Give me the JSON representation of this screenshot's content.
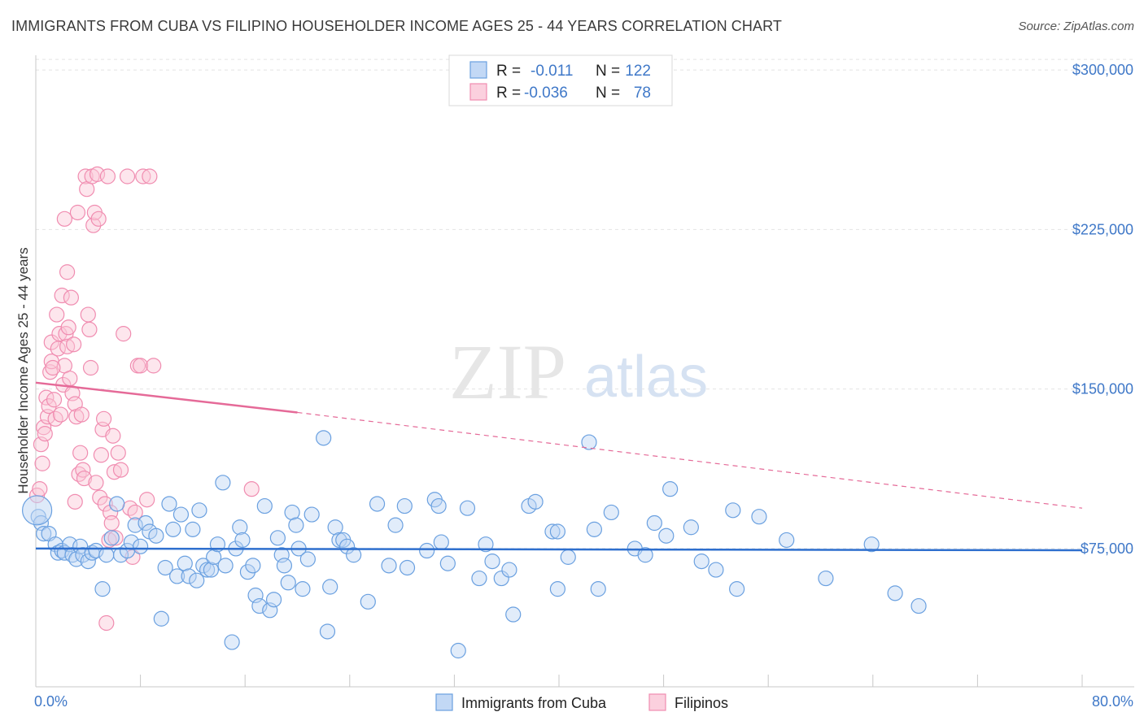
{
  "title": "IMMIGRANTS FROM CUBA VS FILIPINO HOUSEHOLDER INCOME AGES 25 - 44 YEARS CORRELATION CHART",
  "source": "Source: ZipAtlas.com",
  "watermark": {
    "zip": "ZIP",
    "atlas": "atlas"
  },
  "colors": {
    "cuba": "#6aa0e0",
    "cuba_line": "#2e6fce",
    "filipino": "#f08cb0",
    "filipino_line": "#e56a98",
    "tick": "#3f78c8"
  },
  "chart_data": {
    "type": "scatter",
    "xlabel": "",
    "ylabel": "Householder Income Ages 25 - 44 years",
    "xlim": [
      0,
      80
    ],
    "ylim": [
      10000,
      310000
    ],
    "y_ticks": [
      75000,
      150000,
      225000,
      300000
    ],
    "y_tick_labels": [
      "$75,000",
      "$150,000",
      "$225,000",
      "$300,000"
    ],
    "x_tick_labels": {
      "left": "0.0%",
      "right": "80.0%"
    },
    "legend_box": [
      {
        "r_label": "R =",
        "r": "-0.011",
        "n_label": "N =",
        "n": "122"
      },
      {
        "r_label": "R =",
        "r": "-0.036",
        "n_label": "N =",
        "n": "78"
      }
    ],
    "series": [
      {
        "name": "Immigrants from Cuba",
        "trend": {
          "x": [
            0,
            80
          ],
          "y": [
            75000,
            74200
          ]
        },
        "points": [
          [
            0.2,
            90000
          ],
          [
            0.4,
            87000
          ],
          [
            0.6,
            82000
          ],
          [
            1.0,
            82000
          ],
          [
            1.5,
            77000
          ],
          [
            1.7,
            73000
          ],
          [
            2.0,
            74000
          ],
          [
            2.2,
            73000
          ],
          [
            2.6,
            77000
          ],
          [
            2.8,
            72000
          ],
          [
            3.1,
            70000
          ],
          [
            3.4,
            76000
          ],
          [
            3.6,
            72000
          ],
          [
            4.0,
            69000
          ],
          [
            4.3,
            73000
          ],
          [
            4.6,
            74000
          ],
          [
            5.1,
            56000
          ],
          [
            5.4,
            72000
          ],
          [
            5.8,
            80000
          ],
          [
            6.2,
            96000
          ],
          [
            6.5,
            72000
          ],
          [
            7.0,
            74000
          ],
          [
            7.3,
            78000
          ],
          [
            7.6,
            86000
          ],
          [
            8.0,
            76000
          ],
          [
            8.4,
            87000
          ],
          [
            8.7,
            83000
          ],
          [
            9.2,
            81000
          ],
          [
            9.6,
            42000
          ],
          [
            9.9,
            66000
          ],
          [
            10.2,
            96000
          ],
          [
            10.5,
            84000
          ],
          [
            10.8,
            62000
          ],
          [
            11.1,
            91000
          ],
          [
            11.4,
            68000
          ],
          [
            11.7,
            62000
          ],
          [
            12.0,
            84000
          ],
          [
            12.3,
            60000
          ],
          [
            12.5,
            93000
          ],
          [
            12.8,
            67000
          ],
          [
            13.1,
            65000
          ],
          [
            13.4,
            65000
          ],
          [
            13.6,
            71000
          ],
          [
            13.9,
            77000
          ],
          [
            14.3,
            106000
          ],
          [
            14.5,
            67000
          ],
          [
            15.0,
            31000
          ],
          [
            15.3,
            75000
          ],
          [
            15.6,
            85000
          ],
          [
            15.8,
            79000
          ],
          [
            16.2,
            64000
          ],
          [
            16.6,
            67000
          ],
          [
            16.8,
            53000
          ],
          [
            17.1,
            48000
          ],
          [
            17.5,
            95000
          ],
          [
            17.9,
            46000
          ],
          [
            18.2,
            51000
          ],
          [
            18.5,
            80000
          ],
          [
            18.8,
            72000
          ],
          [
            19.0,
            67000
          ],
          [
            19.3,
            59000
          ],
          [
            19.6,
            92000
          ],
          [
            19.9,
            86000
          ],
          [
            20.1,
            75000
          ],
          [
            20.4,
            56000
          ],
          [
            20.8,
            70000
          ],
          [
            21.1,
            91000
          ],
          [
            22.0,
            127000
          ],
          [
            22.3,
            36000
          ],
          [
            22.5,
            57000
          ],
          [
            22.9,
            85000
          ],
          [
            23.2,
            79000
          ],
          [
            23.5,
            79000
          ],
          [
            23.8,
            76000
          ],
          [
            24.3,
            72000
          ],
          [
            25.4,
            50000
          ],
          [
            26.1,
            96000
          ],
          [
            27.0,
            67000
          ],
          [
            27.5,
            86000
          ],
          [
            28.2,
            95000
          ],
          [
            28.4,
            66000
          ],
          [
            29.9,
            74000
          ],
          [
            30.5,
            98000
          ],
          [
            30.8,
            95000
          ],
          [
            31.0,
            78000
          ],
          [
            31.5,
            68000
          ],
          [
            32.3,
            27000
          ],
          [
            33.0,
            94000
          ],
          [
            33.9,
            61000
          ],
          [
            34.4,
            77000
          ],
          [
            34.9,
            69000
          ],
          [
            35.6,
            61000
          ],
          [
            36.2,
            65000
          ],
          [
            36.5,
            44000
          ],
          [
            37.7,
            95000
          ],
          [
            38.2,
            97000
          ],
          [
            39.5,
            83000
          ],
          [
            39.9,
            83000
          ],
          [
            39.9,
            56000
          ],
          [
            40.7,
            71000
          ],
          [
            42.3,
            125000
          ],
          [
            42.7,
            84000
          ],
          [
            43.0,
            56000
          ],
          [
            44.0,
            92000
          ],
          [
            45.8,
            75000
          ],
          [
            46.6,
            72000
          ],
          [
            47.3,
            87000
          ],
          [
            48.2,
            81000
          ],
          [
            48.5,
            103000
          ],
          [
            50.1,
            85000
          ],
          [
            50.9,
            69000
          ],
          [
            52.0,
            65000
          ],
          [
            53.3,
            93000
          ],
          [
            53.6,
            56000
          ],
          [
            55.3,
            90000
          ],
          [
            57.4,
            79000
          ],
          [
            60.4,
            61000
          ],
          [
            63.9,
            77000
          ],
          [
            65.7,
            54000
          ],
          [
            67.5,
            48000
          ]
        ]
      },
      {
        "name": "Filipinos",
        "trend": {
          "x": [
            0,
            20
          ],
          "y": [
            153000,
            139000
          ]
        },
        "trend_dashed": {
          "x": [
            20,
            80
          ],
          "y": [
            139000,
            94000
          ]
        },
        "points": [
          [
            0.1,
            100000
          ],
          [
            0.3,
            103000
          ],
          [
            0.4,
            124000
          ],
          [
            0.5,
            115000
          ],
          [
            0.6,
            132000
          ],
          [
            0.7,
            129000
          ],
          [
            0.8,
            146000
          ],
          [
            0.9,
            137000
          ],
          [
            1.0,
            142000
          ],
          [
            1.1,
            158000
          ],
          [
            1.2,
            163000
          ],
          [
            1.2,
            172000
          ],
          [
            1.4,
            145000
          ],
          [
            1.5,
            136000
          ],
          [
            1.6,
            185000
          ],
          [
            1.7,
            169000
          ],
          [
            1.8,
            176000
          ],
          [
            1.9,
            138000
          ],
          [
            2.0,
            194000
          ],
          [
            2.1,
            152000
          ],
          [
            2.2,
            161000
          ],
          [
            2.3,
            176000
          ],
          [
            2.4,
            170000
          ],
          [
            2.4,
            205000
          ],
          [
            2.5,
            179000
          ],
          [
            2.6,
            155000
          ],
          [
            2.7,
            193000
          ],
          [
            2.8,
            148000
          ],
          [
            2.9,
            171000
          ],
          [
            3.0,
            143000
          ],
          [
            3.1,
            137000
          ],
          [
            3.2,
            233000
          ],
          [
            3.3,
            110000
          ],
          [
            3.4,
            120000
          ],
          [
            3.5,
            138000
          ],
          [
            3.6,
            112000
          ],
          [
            3.7,
            108000
          ],
          [
            3.8,
            250000
          ],
          [
            3.9,
            244000
          ],
          [
            4.0,
            185000
          ],
          [
            4.1,
            178000
          ],
          [
            4.2,
            160000
          ],
          [
            4.3,
            250000
          ],
          [
            4.4,
            227000
          ],
          [
            4.5,
            233000
          ],
          [
            4.6,
            106000
          ],
          [
            4.7,
            251000
          ],
          [
            4.8,
            230000
          ],
          [
            4.9,
            99000
          ],
          [
            5.0,
            119000
          ],
          [
            5.1,
            131000
          ],
          [
            5.2,
            136000
          ],
          [
            5.3,
            96000
          ],
          [
            5.4,
            40000
          ],
          [
            5.5,
            250000
          ],
          [
            5.6,
            79000
          ],
          [
            5.7,
            92000
          ],
          [
            5.8,
            87000
          ],
          [
            5.9,
            128000
          ],
          [
            6.0,
            111000
          ],
          [
            6.1,
            80000
          ],
          [
            6.3,
            120000
          ],
          [
            6.5,
            112000
          ],
          [
            6.7,
            176000
          ],
          [
            7.0,
            250000
          ],
          [
            7.2,
            94000
          ],
          [
            7.4,
            71000
          ],
          [
            7.6,
            92000
          ],
          [
            7.8,
            161000
          ],
          [
            8.0,
            161000
          ],
          [
            8.2,
            250000
          ],
          [
            8.5,
            98000
          ],
          [
            8.7,
            250000
          ],
          [
            9.0,
            161000
          ],
          [
            16.5,
            103000
          ],
          [
            2.2,
            230000
          ],
          [
            3.0,
            97000
          ],
          [
            1.3,
            160000
          ]
        ]
      }
    ]
  },
  "bottom_legend": [
    "Immigrants from Cuba",
    "Filipinos"
  ]
}
